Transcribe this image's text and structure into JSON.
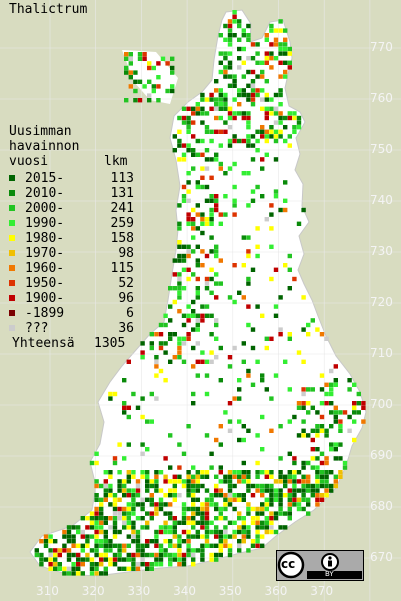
{
  "title": "Thalictrum",
  "legend": {
    "heading": [
      "Uusimman",
      "havainnon"
    ],
    "col_year": "vuosi",
    "col_count": "lkm",
    "rows": [
      {
        "label": "2015-",
        "count": "113",
        "color": "#006400"
      },
      {
        "label": "2010-",
        "count": "131",
        "color": "#0a8a0a"
      },
      {
        "label": "2000-",
        "count": "241",
        "color": "#22c422"
      },
      {
        "label": "1990-",
        "count": "259",
        "color": "#33ee33"
      },
      {
        "label": "1980-",
        "count": "158",
        "color": "#ffff00"
      },
      {
        "label": "1970-",
        "count": "98",
        "color": "#f0bf00"
      },
      {
        "label": "1960-",
        "count": "115",
        "color": "#f07800"
      },
      {
        "label": "1950-",
        "count": "52",
        "color": "#dd3300"
      },
      {
        "label": "1900-",
        "count": "96",
        "color": "#c00000"
      },
      {
        "label": "-1899",
        "count": "6",
        "color": "#7a0000"
      },
      {
        "label": "???",
        "count": "36",
        "color": "#cccccc"
      }
    ],
    "total_label": "Yhteensä",
    "total_count": "1305"
  },
  "axis": {
    "x_ticks": [
      "310",
      "320",
      "330",
      "340",
      "350",
      "360",
      "370"
    ],
    "y_ticks": [
      "770",
      "760",
      "750",
      "740",
      "730",
      "720",
      "710",
      "700",
      "690",
      "680",
      "670"
    ]
  },
  "license": {
    "icon": "creative-commons-by-icon",
    "text_cc": "cc",
    "text_by": "BY"
  },
  "colors": {
    "background": "#d8dcc0",
    "land": "#ffffff",
    "grid": "#e8e8e8"
  }
}
